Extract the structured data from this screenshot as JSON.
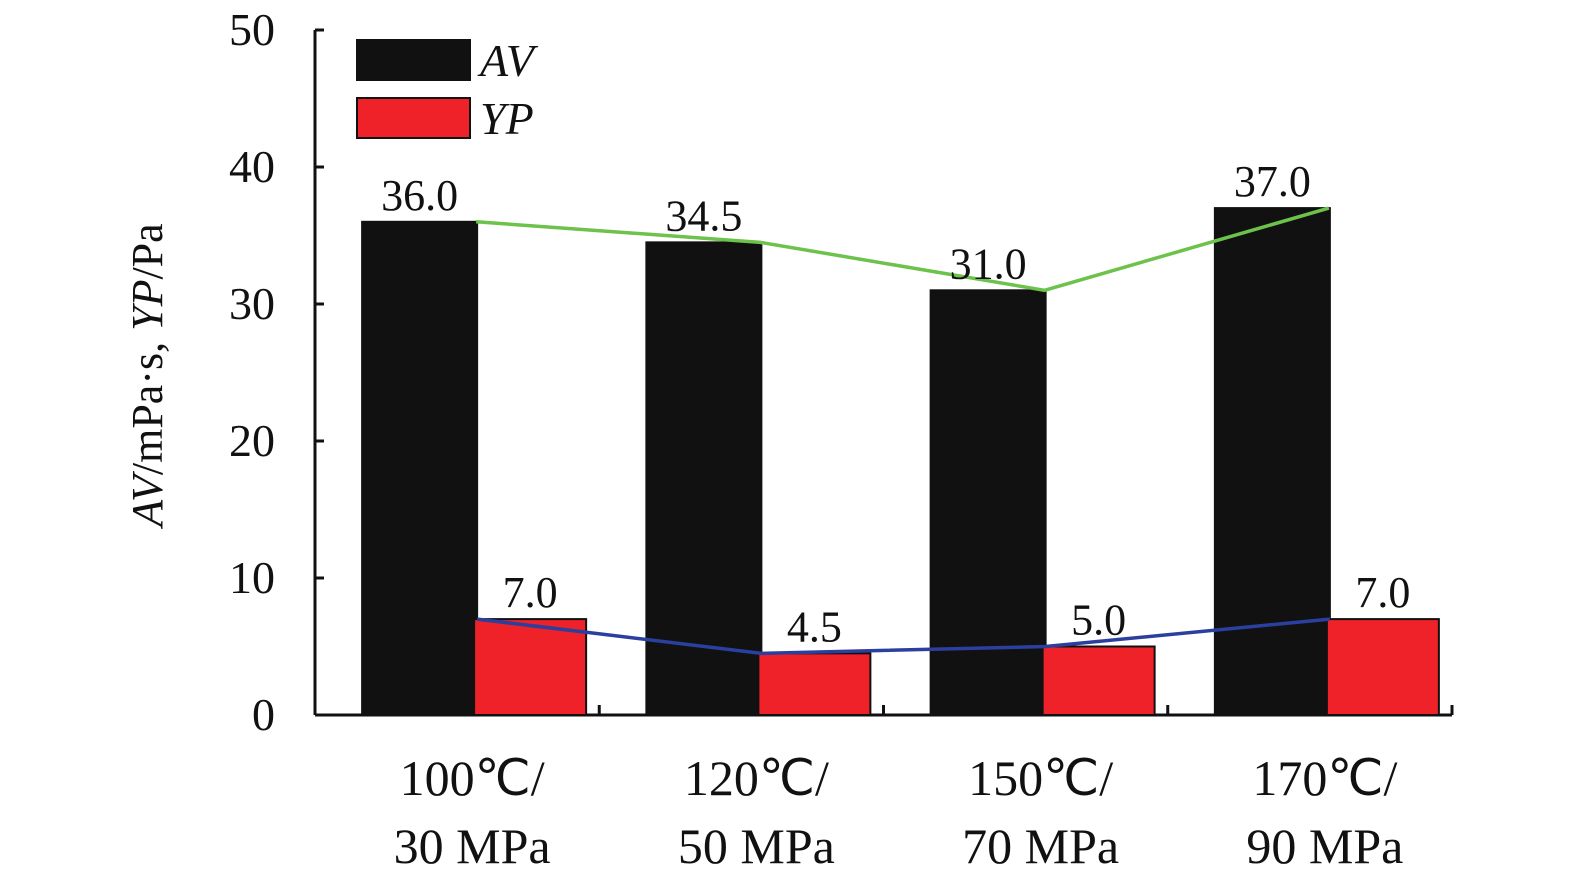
{
  "chart_data": {
    "type": "bar",
    "categories": [
      "100℃/\n30 MPa",
      "120℃/\n50 MPa",
      "150℃/\n70 MPa",
      "170℃/\n90 MPa"
    ],
    "category_lines": [
      [
        "100℃/",
        "30 MPa"
      ],
      [
        "120℃/",
        "50 MPa"
      ],
      [
        "150℃/",
        "70 MPa"
      ],
      [
        "170℃/",
        "90 MPa"
      ]
    ],
    "series": [
      {
        "name": "AV",
        "values": [
          36.0,
          34.5,
          31.0,
          37.0
        ],
        "labels": [
          "36.0",
          "34.5",
          "31.0",
          "37.0"
        ],
        "color": "#111111",
        "trend_color": "#6cc24a"
      },
      {
        "name": "YP",
        "values": [
          7.0,
          4.5,
          5.0,
          7.0
        ],
        "labels": [
          "7.0",
          "4.5",
          "5.0",
          "7.0"
        ],
        "color": "#ee2228",
        "trend_color": "#2b3f9e"
      }
    ],
    "ylabel_parts": [
      "AV",
      "/mPa·s, ",
      "YP",
      "/Pa"
    ],
    "xlabel": "",
    "ylim": [
      0,
      50
    ],
    "yticks": [
      "0",
      "10",
      "20",
      "30",
      "40",
      "50"
    ],
    "grid": false,
    "legend_position": "top-left"
  }
}
